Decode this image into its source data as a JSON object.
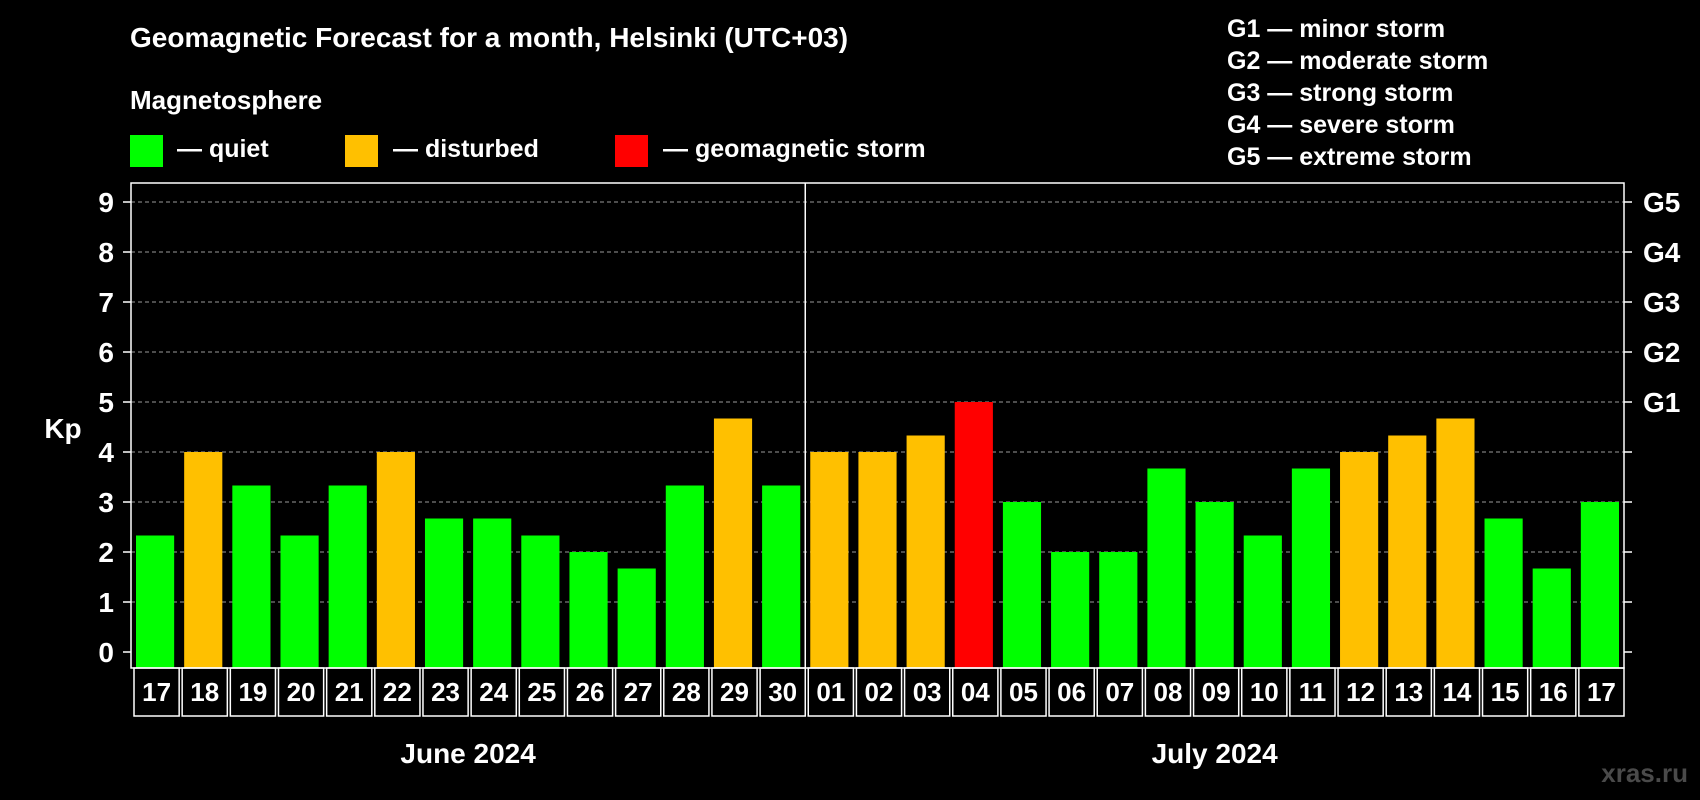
{
  "chart_data": {
    "type": "bar",
    "title": "Geomagnetic Forecast for a month, Helsinki (UTC+03)",
    "legend_title": "Magnetosphere",
    "legend": [
      {
        "label": "— quiet",
        "color": "#00ff00"
      },
      {
        "label": "— disturbed",
        "color": "#ffc000"
      },
      {
        "label": "— geomagnetic storm",
        "color": "#ff0000"
      }
    ],
    "storm_levels": [
      "G1 — minor storm",
      "G2 — moderate storm",
      "G3 — strong storm",
      "G4 — severe storm",
      "G5 — extreme storm"
    ],
    "ylabel": "Kp",
    "ylim": [
      0,
      9
    ],
    "y_ticks": [
      "0",
      "1",
      "2",
      "3",
      "4",
      "5",
      "6",
      "7",
      "8",
      "9"
    ],
    "g_ticks": [
      {
        "label": "G1",
        "kp": 5
      },
      {
        "label": "G2",
        "kp": 6
      },
      {
        "label": "G3",
        "kp": 7
      },
      {
        "label": "G4",
        "kp": 8
      },
      {
        "label": "G5",
        "kp": 9
      }
    ],
    "categories": [
      "17",
      "18",
      "19",
      "20",
      "21",
      "22",
      "23",
      "24",
      "25",
      "26",
      "27",
      "28",
      "29",
      "30",
      "01",
      "02",
      "03",
      "04",
      "05",
      "06",
      "07",
      "08",
      "09",
      "10",
      "11",
      "12",
      "13",
      "14",
      "15",
      "16",
      "17"
    ],
    "values": [
      2.33,
      4,
      3.33,
      2.33,
      3.33,
      4,
      2.67,
      2.67,
      2.33,
      2,
      1.67,
      3.33,
      4.67,
      3.33,
      4,
      4,
      4.33,
      5,
      3,
      2,
      2,
      3.67,
      3,
      2.33,
      3.67,
      4,
      4.33,
      4.67,
      2.67,
      1.67,
      3
    ],
    "colors": [
      "#00ff00",
      "#ffc000",
      "#00ff00",
      "#00ff00",
      "#00ff00",
      "#ffc000",
      "#00ff00",
      "#00ff00",
      "#00ff00",
      "#00ff00",
      "#00ff00",
      "#00ff00",
      "#ffc000",
      "#00ff00",
      "#ffc000",
      "#ffc000",
      "#ffc000",
      "#ff0000",
      "#00ff00",
      "#00ff00",
      "#00ff00",
      "#00ff00",
      "#00ff00",
      "#00ff00",
      "#00ff00",
      "#ffc000",
      "#ffc000",
      "#ffc000",
      "#00ff00",
      "#00ff00",
      "#00ff00"
    ],
    "months": [
      {
        "label": "June 2024",
        "start_index": 0,
        "count": 14
      },
      {
        "label": "July 2024",
        "start_index": 14,
        "count": 17
      }
    ],
    "grid": true
  },
  "watermark": "xras.ru"
}
